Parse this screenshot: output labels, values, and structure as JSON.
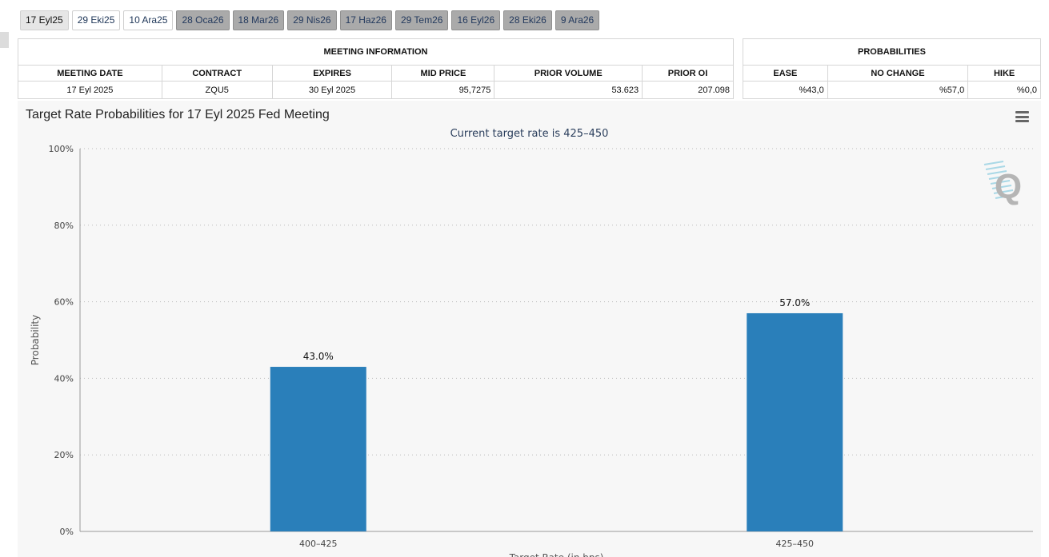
{
  "tabs": [
    {
      "label": "17 Eyl25",
      "state": "active"
    },
    {
      "label": "29 Eki25",
      "state": "normal"
    },
    {
      "label": "10 Ara25",
      "state": "normal"
    },
    {
      "label": "28 Oca26",
      "state": "grey"
    },
    {
      "label": "18 Mar26",
      "state": "grey"
    },
    {
      "label": "29 Nis26",
      "state": "grey"
    },
    {
      "label": "17 Haz26",
      "state": "grey"
    },
    {
      "label": "29 Tem26",
      "state": "grey"
    },
    {
      "label": "16 Eyl26",
      "state": "grey"
    },
    {
      "label": "28 Eki26",
      "state": "grey"
    },
    {
      "label": "9 Ara26",
      "state": "grey"
    }
  ],
  "meeting_info": {
    "group_title": "MEETING INFORMATION",
    "headers": {
      "meeting_date": "MEETING DATE",
      "contract": "CONTRACT",
      "expires": "EXPIRES",
      "mid_price": "MID PRICE",
      "prior_volume": "PRIOR VOLUME",
      "prior_oi": "PRIOR OI"
    },
    "row": {
      "meeting_date": "17 Eyl 2025",
      "contract": "ZQU5",
      "expires": "30 Eyl 2025",
      "mid_price": "95,7275",
      "prior_volume": "53.623",
      "prior_oi": "207.098"
    }
  },
  "probabilities": {
    "group_title": "PROBABILITIES",
    "headers": {
      "ease": "EASE",
      "no_change": "NO CHANGE",
      "hike": "HIKE"
    },
    "row": {
      "ease": "%43,0",
      "no_change": "%57,0",
      "hike": "%0,0"
    }
  },
  "chart": {
    "title": "Target Rate Probabilities for 17 Eyl 2025 Fed Meeting",
    "subtitle": "Current target rate is 425–450",
    "menu_icon": "hamburger-menu-icon",
    "watermark_icon": "q-logo-icon",
    "bar_color": "#2a7fba"
  },
  "chart_data": {
    "type": "bar",
    "title": "Target Rate Probabilities for 17 Eyl 2025 Fed Meeting",
    "subtitle": "Current target rate is 425–450",
    "categories": [
      "400–425",
      "425–450"
    ],
    "values": [
      43.0,
      57.0
    ],
    "data_labels": [
      "43.0%",
      "57.0%"
    ],
    "ylabel": "Probability",
    "xlabel": "Target Rate (in bps)",
    "ylim": [
      0,
      100
    ],
    "yticks": [
      0,
      20,
      40,
      60,
      80,
      100
    ],
    "ytick_labels": [
      "0%",
      "20%",
      "40%",
      "60%",
      "80%",
      "100%"
    ],
    "grid": true
  }
}
